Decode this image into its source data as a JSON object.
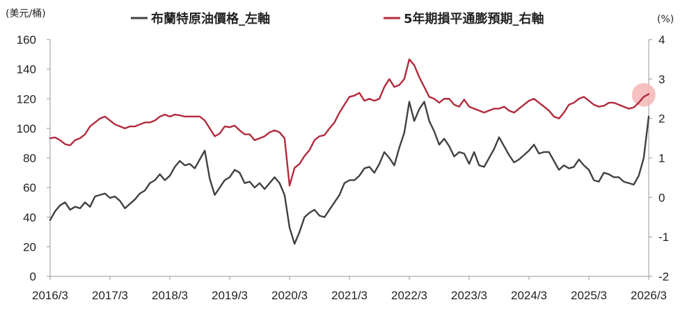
{
  "chart_data": {
    "type": "line",
    "left_axis": {
      "unit_label": "(美元/桶)",
      "range": [
        0,
        160
      ],
      "ticks": [
        0,
        20,
        40,
        60,
        80,
        100,
        120,
        140,
        160
      ]
    },
    "right_axis": {
      "unit_label": "(%)",
      "range": [
        -2,
        4
      ],
      "ticks": [
        -2,
        -1,
        0,
        1,
        2,
        3,
        4
      ]
    },
    "x_axis": {
      "ticks": [
        "2016/3",
        "2017/3",
        "2018/3",
        "2019/3",
        "2020/3",
        "2021/3",
        "2022/3",
        "2023/3",
        "2024/3",
        "2025/3",
        "2026/3"
      ]
    },
    "legend": {
      "placement": "top-center"
    },
    "highlight": {
      "x": "2026/2",
      "y_right": 2.6,
      "color": "#f3b6b6"
    },
    "series": [
      {
        "name": "布蘭特原油價格_左軸",
        "axis": "left",
        "color": "#404040",
        "points": [
          [
            "2016/03",
            38
          ],
          [
            "2016/04",
            44
          ],
          [
            "2016/05",
            48
          ],
          [
            "2016/06",
            50
          ],
          [
            "2016/07",
            45
          ],
          [
            "2016/08",
            47
          ],
          [
            "2016/09",
            46
          ],
          [
            "2016/10",
            50
          ],
          [
            "2016/11",
            47
          ],
          [
            "2016/12",
            54
          ],
          [
            "2017/01",
            55
          ],
          [
            "2017/02",
            56
          ],
          [
            "2017/03",
            53
          ],
          [
            "2017/04",
            54
          ],
          [
            "2017/05",
            51
          ],
          [
            "2017/06",
            46
          ],
          [
            "2017/07",
            49
          ],
          [
            "2017/08",
            52
          ],
          [
            "2017/09",
            56
          ],
          [
            "2017/10",
            58
          ],
          [
            "2017/11",
            63
          ],
          [
            "2017/12",
            65
          ],
          [
            "2018/01",
            69
          ],
          [
            "2018/02",
            65
          ],
          [
            "2018/03",
            68
          ],
          [
            "2018/04",
            74
          ],
          [
            "2018/05",
            78
          ],
          [
            "2018/06",
            75
          ],
          [
            "2018/07",
            76
          ],
          [
            "2018/08",
            73
          ],
          [
            "2018/09",
            79
          ],
          [
            "2018/10",
            85
          ],
          [
            "2018/11",
            66
          ],
          [
            "2018/12",
            55
          ],
          [
            "2019/01",
            60
          ],
          [
            "2019/02",
            65
          ],
          [
            "2019/03",
            67
          ],
          [
            "2019/04",
            72
          ],
          [
            "2019/05",
            70
          ],
          [
            "2019/06",
            63
          ],
          [
            "2019/07",
            64
          ],
          [
            "2019/08",
            60
          ],
          [
            "2019/09",
            63
          ],
          [
            "2019/10",
            59
          ],
          [
            "2019/11",
            63
          ],
          [
            "2019/12",
            67
          ],
          [
            "2020/01",
            63
          ],
          [
            "2020/02",
            55
          ],
          [
            "2020/03",
            33
          ],
          [
            "2020/04",
            22
          ],
          [
            "2020/05",
            30
          ],
          [
            "2020/06",
            40
          ],
          [
            "2020/07",
            43
          ],
          [
            "2020/08",
            45
          ],
          [
            "2020/09",
            41
          ],
          [
            "2020/10",
            40
          ],
          [
            "2020/11",
            45
          ],
          [
            "2020/12",
            50
          ],
          [
            "2021/01",
            55
          ],
          [
            "2021/02",
            63
          ],
          [
            "2021/03",
            65
          ],
          [
            "2021/04",
            65
          ],
          [
            "2021/05",
            68
          ],
          [
            "2021/06",
            73
          ],
          [
            "2021/07",
            74
          ],
          [
            "2021/08",
            70
          ],
          [
            "2021/09",
            76
          ],
          [
            "2021/10",
            84
          ],
          [
            "2021/11",
            80
          ],
          [
            "2021/12",
            75
          ],
          [
            "2022/01",
            87
          ],
          [
            "2022/02",
            97
          ],
          [
            "2022/03",
            118
          ],
          [
            "2022/04",
            105
          ],
          [
            "2022/05",
            113
          ],
          [
            "2022/06",
            118
          ],
          [
            "2022/07",
            105
          ],
          [
            "2022/08",
            98
          ],
          [
            "2022/09",
            89
          ],
          [
            "2022/10",
            93
          ],
          [
            "2022/11",
            88
          ],
          [
            "2022/12",
            81
          ],
          [
            "2023/01",
            84
          ],
          [
            "2023/02",
            83
          ],
          [
            "2023/03",
            76
          ],
          [
            "2023/04",
            84
          ],
          [
            "2023/05",
            75
          ],
          [
            "2023/06",
            74
          ],
          [
            "2023/07",
            80
          ],
          [
            "2023/08",
            86
          ],
          [
            "2023/09",
            94
          ],
          [
            "2023/10",
            88
          ],
          [
            "2023/11",
            82
          ],
          [
            "2023/12",
            77
          ],
          [
            "2024/01",
            79
          ],
          [
            "2024/02",
            82
          ],
          [
            "2024/03",
            85
          ],
          [
            "2024/04",
            89
          ],
          [
            "2024/05",
            83
          ],
          [
            "2024/06",
            84
          ],
          [
            "2024/07",
            84
          ],
          [
            "2024/08",
            78
          ],
          [
            "2024/09",
            72
          ],
          [
            "2024/10",
            75
          ],
          [
            "2024/11",
            73
          ],
          [
            "2024/12",
            74
          ],
          [
            "2025/01",
            79
          ],
          [
            "2025/02",
            75
          ],
          [
            "2025/03",
            72
          ],
          [
            "2025/04",
            65
          ],
          [
            "2025/05",
            64
          ],
          [
            "2025/06",
            70
          ],
          [
            "2025/07",
            69
          ],
          [
            "2025/08",
            67
          ],
          [
            "2025/09",
            67
          ],
          [
            "2025/10",
            64
          ],
          [
            "2025/11",
            63
          ],
          [
            "2025/12",
            62
          ],
          [
            "2026/01",
            68
          ],
          [
            "2026/02",
            80
          ],
          [
            "2026/03",
            108
          ]
        ]
      },
      {
        "name": "5年期損平通膨預期_右軸",
        "axis": "right",
        "color": "#b22a3c",
        "points": [
          [
            "2016/03",
            1.5
          ],
          [
            "2016/04",
            1.52
          ],
          [
            "2016/05",
            1.45
          ],
          [
            "2016/06",
            1.35
          ],
          [
            "2016/07",
            1.32
          ],
          [
            "2016/08",
            1.45
          ],
          [
            "2016/09",
            1.5
          ],
          [
            "2016/10",
            1.6
          ],
          [
            "2016/11",
            1.8
          ],
          [
            "2016/12",
            1.9
          ],
          [
            "2017/01",
            2.0
          ],
          [
            "2017/02",
            2.05
          ],
          [
            "2017/03",
            1.95
          ],
          [
            "2017/04",
            1.85
          ],
          [
            "2017/05",
            1.8
          ],
          [
            "2017/06",
            1.75
          ],
          [
            "2017/07",
            1.8
          ],
          [
            "2017/08",
            1.8
          ],
          [
            "2017/09",
            1.85
          ],
          [
            "2017/10",
            1.9
          ],
          [
            "2017/11",
            1.9
          ],
          [
            "2017/12",
            1.95
          ],
          [
            "2018/01",
            2.05
          ],
          [
            "2018/02",
            2.1
          ],
          [
            "2018/03",
            2.05
          ],
          [
            "2018/04",
            2.1
          ],
          [
            "2018/05",
            2.08
          ],
          [
            "2018/06",
            2.05
          ],
          [
            "2018/07",
            2.05
          ],
          [
            "2018/08",
            2.05
          ],
          [
            "2018/09",
            2.05
          ],
          [
            "2018/10",
            1.95
          ],
          [
            "2018/11",
            1.75
          ],
          [
            "2018/12",
            1.55
          ],
          [
            "2019/01",
            1.62
          ],
          [
            "2019/02",
            1.8
          ],
          [
            "2019/03",
            1.78
          ],
          [
            "2019/04",
            1.82
          ],
          [
            "2019/05",
            1.7
          ],
          [
            "2019/06",
            1.6
          ],
          [
            "2019/07",
            1.6
          ],
          [
            "2019/08",
            1.45
          ],
          [
            "2019/09",
            1.5
          ],
          [
            "2019/10",
            1.55
          ],
          [
            "2019/11",
            1.65
          ],
          [
            "2019/12",
            1.7
          ],
          [
            "2020/01",
            1.65
          ],
          [
            "2020/02",
            1.5
          ],
          [
            "2020/03",
            0.3
          ],
          [
            "2020/04",
            0.75
          ],
          [
            "2020/05",
            0.85
          ],
          [
            "2020/06",
            1.05
          ],
          [
            "2020/07",
            1.2
          ],
          [
            "2020/08",
            1.45
          ],
          [
            "2020/09",
            1.55
          ],
          [
            "2020/10",
            1.58
          ],
          [
            "2020/11",
            1.75
          ],
          [
            "2020/12",
            1.9
          ],
          [
            "2021/01",
            2.15
          ],
          [
            "2021/02",
            2.35
          ],
          [
            "2021/03",
            2.55
          ],
          [
            "2021/04",
            2.58
          ],
          [
            "2021/05",
            2.65
          ],
          [
            "2021/06",
            2.45
          ],
          [
            "2021/07",
            2.5
          ],
          [
            "2021/08",
            2.45
          ],
          [
            "2021/09",
            2.5
          ],
          [
            "2021/10",
            2.8
          ],
          [
            "2021/11",
            3.0
          ],
          [
            "2021/12",
            2.8
          ],
          [
            "2022/01",
            2.85
          ],
          [
            "2022/02",
            3.0
          ],
          [
            "2022/03",
            3.5
          ],
          [
            "2022/04",
            3.35
          ],
          [
            "2022/05",
            3.05
          ],
          [
            "2022/06",
            2.8
          ],
          [
            "2022/07",
            2.55
          ],
          [
            "2022/08",
            2.5
          ],
          [
            "2022/09",
            2.4
          ],
          [
            "2022/10",
            2.5
          ],
          [
            "2022/11",
            2.5
          ],
          [
            "2022/12",
            2.35
          ],
          [
            "2023/01",
            2.3
          ],
          [
            "2023/02",
            2.48
          ],
          [
            "2023/03",
            2.3
          ],
          [
            "2023/04",
            2.25
          ],
          [
            "2023/05",
            2.2
          ],
          [
            "2023/06",
            2.15
          ],
          [
            "2023/07",
            2.2
          ],
          [
            "2023/08",
            2.25
          ],
          [
            "2023/09",
            2.25
          ],
          [
            "2023/10",
            2.3
          ],
          [
            "2023/11",
            2.2
          ],
          [
            "2023/12",
            2.15
          ],
          [
            "2024/01",
            2.25
          ],
          [
            "2024/02",
            2.35
          ],
          [
            "2024/03",
            2.45
          ],
          [
            "2024/04",
            2.5
          ],
          [
            "2024/05",
            2.4
          ],
          [
            "2024/06",
            2.3
          ],
          [
            "2024/07",
            2.2
          ],
          [
            "2024/08",
            2.05
          ],
          [
            "2024/09",
            2.0
          ],
          [
            "2024/10",
            2.15
          ],
          [
            "2024/11",
            2.35
          ],
          [
            "2024/12",
            2.4
          ],
          [
            "2025/01",
            2.5
          ],
          [
            "2025/02",
            2.55
          ],
          [
            "2025/03",
            2.45
          ],
          [
            "2025/04",
            2.35
          ],
          [
            "2025/05",
            2.3
          ],
          [
            "2025/06",
            2.32
          ],
          [
            "2025/07",
            2.4
          ],
          [
            "2025/08",
            2.4
          ],
          [
            "2025/09",
            2.35
          ],
          [
            "2025/10",
            2.3
          ],
          [
            "2025/11",
            2.25
          ],
          [
            "2025/12",
            2.28
          ],
          [
            "2026/01",
            2.4
          ],
          [
            "2026/02",
            2.55
          ],
          [
            "2026/03",
            2.62
          ]
        ]
      }
    ]
  }
}
